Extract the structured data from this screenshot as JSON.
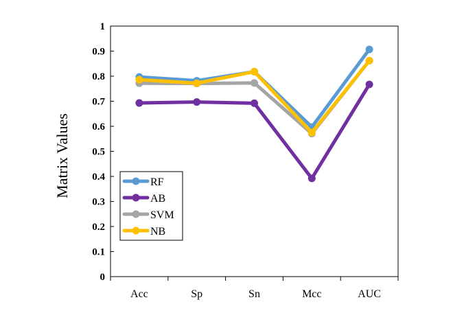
{
  "chart_data": {
    "type": "line",
    "title": "",
    "xlabel": "",
    "ylabel": "Matrix Values",
    "categories": [
      "Acc",
      "Sp",
      "Sn",
      "Mcc",
      "AUC"
    ],
    "ylim": [
      0,
      1
    ],
    "yticks": [
      "0",
      "0.1",
      "0.2",
      "0.3",
      "0.4",
      "0.5",
      "0.6",
      "0.7",
      "0.8",
      "0.9",
      "1"
    ],
    "grid": false,
    "legend_position": "bottom-left",
    "series": [
      {
        "name": "RF",
        "color": "#5B9BD5",
        "values": [
          0.797,
          0.782,
          0.818,
          0.597,
          0.907
        ]
      },
      {
        "name": "AB",
        "color": "#7030A0",
        "values": [
          0.693,
          0.697,
          0.692,
          0.392,
          0.767
        ]
      },
      {
        "name": "SVM",
        "color": "#A5A5A5",
        "values": [
          0.772,
          0.771,
          0.773,
          0.571,
          0.862
        ]
      },
      {
        "name": "NB",
        "color": "#FFC000",
        "values": [
          0.786,
          0.772,
          0.818,
          0.575,
          0.862
        ]
      }
    ]
  }
}
